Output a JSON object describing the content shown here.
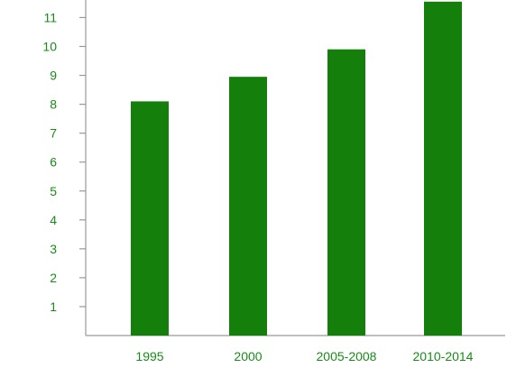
{
  "chart_data": {
    "type": "bar",
    "categories": [
      "1995",
      "2000",
      "2005-2008",
      "2010-2014"
    ],
    "values": [
      8.1,
      8.95,
      9.9,
      11.55
    ],
    "title": "",
    "xlabel": "",
    "ylabel": "",
    "ylim": [
      0,
      11.55
    ],
    "yticks": [
      1,
      2,
      3,
      4,
      5,
      6,
      7,
      8,
      9,
      10,
      11
    ],
    "grid": false,
    "legend": "none",
    "colors": {
      "bar": "#147f0b",
      "axis": "#999999",
      "label": "#1a8a1a"
    }
  }
}
